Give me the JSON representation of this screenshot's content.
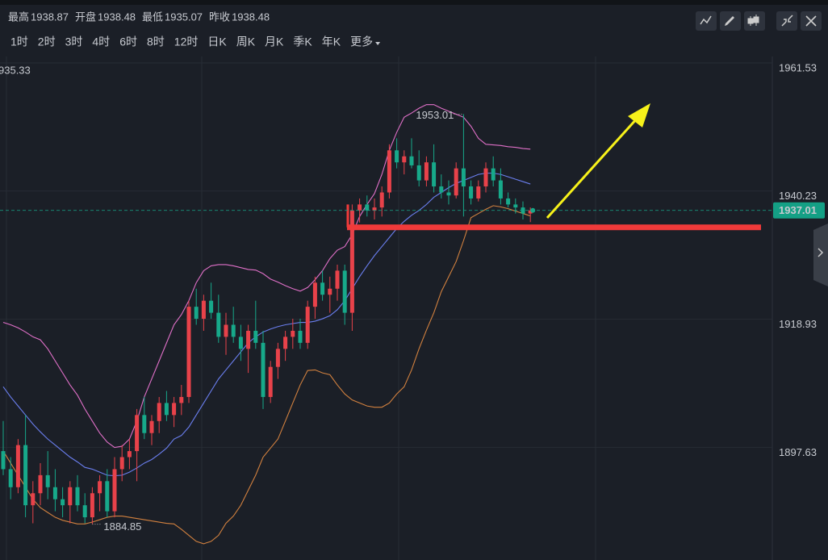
{
  "header": {
    "items": [
      {
        "label": "最高",
        "value": 1938.87
      },
      {
        "label": "开盘",
        "value": 1938.48
      },
      {
        "label": "最低",
        "value": 1935.07
      },
      {
        "label": "昨收",
        "value": 1938.48
      }
    ]
  },
  "toolbar": {
    "periods": [
      "1时",
      "2时",
      "3时",
      "4时",
      "6时",
      "8时",
      "12时",
      "日K",
      "周K",
      "月K",
      "季K",
      "年K",
      "更多"
    ],
    "active": "4时"
  },
  "chart_data": {
    "type": "candlestick",
    "up_color": "#e8424a",
    "down_color": "#17a98a",
    "ylim": [
      1878.9,
      1962.6
    ],
    "yticks": [
      1961.53,
      1940.23,
      1918.93,
      1897.63
    ],
    "grid": true,
    "left_label": "935.33",
    "hline": {
      "value": 1934.2,
      "color": "#f03a3a"
    },
    "candles": [
      [
        1897,
        1902,
        1893,
        1894
      ],
      [
        1894,
        1896,
        1889,
        1891
      ],
      [
        1891,
        1899,
        1890,
        1898
      ],
      [
        1898,
        1903,
        1886,
        1888
      ],
      [
        1888,
        1892,
        1885,
        1890
      ],
      [
        1890,
        1895,
        1888,
        1893
      ],
      [
        1893,
        1897,
        1889,
        1891
      ],
      [
        1891,
        1894,
        1887,
        1889
      ],
      [
        1889,
        1891,
        1886,
        1888
      ],
      [
        1888,
        1892,
        1885,
        1891
      ],
      [
        1891,
        1893,
        1887,
        1888
      ],
      [
        1888,
        1890,
        1885,
        1886
      ],
      [
        1886,
        1891,
        1884.85,
        1890
      ],
      [
        1890,
        1893,
        1887,
        1892
      ],
      [
        1892,
        1894,
        1886,
        1887
      ],
      [
        1887,
        1896,
        1886,
        1894
      ],
      [
        1894,
        1898,
        1892,
        1896
      ],
      [
        1896,
        1899,
        1894,
        1897
      ],
      [
        1897,
        1904,
        1892,
        1903
      ],
      [
        1903,
        1906,
        1899,
        1900
      ],
      [
        1900,
        1903,
        1898,
        1902
      ],
      [
        1902,
        1906,
        1900,
        1905
      ],
      [
        1905,
        1907,
        1902,
        1903
      ],
      [
        1903,
        1906,
        1901,
        1905
      ],
      [
        1905,
        1908,
        1903,
        1906
      ],
      [
        1906,
        1922,
        1905,
        1921
      ],
      [
        1921,
        1924,
        1918,
        1919
      ],
      [
        1919,
        1923,
        1917,
        1922
      ],
      [
        1922,
        1925,
        1919,
        1920
      ],
      [
        1920,
        1923,
        1915,
        1916
      ],
      [
        1916,
        1920,
        1913,
        1918
      ],
      [
        1918,
        1921,
        1915,
        1916
      ],
      [
        1916,
        1918,
        1912,
        1914
      ],
      [
        1914,
        1918,
        1910,
        1917
      ],
      [
        1917,
        1922,
        1914,
        1915
      ],
      [
        1915,
        1917,
        1904,
        1906
      ],
      [
        1906,
        1912,
        1905,
        1911
      ],
      [
        1911,
        1915,
        1909,
        1914
      ],
      [
        1914,
        1917,
        1912,
        1916
      ],
      [
        1916,
        1919,
        1914,
        1917
      ],
      [
        1917,
        1919,
        1914,
        1915
      ],
      [
        1915,
        1922,
        1914,
        1921
      ],
      [
        1921,
        1926,
        1919,
        1925
      ],
      [
        1925,
        1927,
        1922,
        1923
      ],
      [
        1923,
        1926,
        1920,
        1924
      ],
      [
        1924,
        1928,
        1922,
        1927
      ],
      [
        1927,
        1928,
        1918,
        1920
      ],
      [
        1920,
        1938,
        1917,
        1937
      ],
      [
        1937,
        1939,
        1935,
        1938
      ],
      [
        1938,
        1939.5,
        1936,
        1937
      ],
      [
        1937,
        1939,
        1935.5,
        1937.5
      ],
      [
        1937.5,
        1941,
        1936,
        1940
      ],
      [
        1940,
        1948,
        1939,
        1947
      ],
      [
        1947,
        1949,
        1944,
        1945
      ],
      [
        1945,
        1947,
        1943,
        1946
      ],
      [
        1946,
        1949,
        1944,
        1944.5
      ],
      [
        1944.5,
        1947,
        1941,
        1942
      ],
      [
        1942,
        1946,
        1941,
        1945
      ],
      [
        1945,
        1948,
        1940,
        1941
      ],
      [
        1941,
        1943,
        1939,
        1940
      ],
      [
        1940,
        1942,
        1938,
        1939.5
      ],
      [
        1939.5,
        1945,
        1939,
        1944
      ],
      [
        1944,
        1953.01,
        1936,
        1941
      ],
      [
        1941,
        1942,
        1938,
        1939
      ],
      [
        1939,
        1942,
        1938.5,
        1941
      ],
      [
        1941,
        1945,
        1940,
        1944
      ],
      [
        1944,
        1946,
        1941,
        1942
      ],
      [
        1942,
        1944,
        1938,
        1939
      ],
      [
        1939,
        1940,
        1937.5,
        1938
      ],
      [
        1938,
        1939,
        1936.5,
        1937.5
      ],
      [
        1937.5,
        1938.5,
        1935.5,
        1936.5
      ],
      [
        1936.5,
        1937.5,
        1935.07,
        1937.01
      ]
    ],
    "lines": [
      {
        "color": "#e070c8",
        "values": [
          1918.4,
          1918,
          1917.5,
          1916.8,
          1916,
          1915.5,
          1914,
          1912,
          1910,
          1908,
          1906.3,
          1904,
          1902,
          1900,
          1898.5,
          1897.6,
          1897.8,
          1899,
          1902,
          1906,
          1909,
          1912,
          1915,
          1918,
          1919.7,
          1922,
          1925,
          1927,
          1927.8,
          1928,
          1928,
          1927.8,
          1927.5,
          1927.2,
          1927.1,
          1926.5,
          1925.6,
          1925.1,
          1924.5,
          1924,
          1923.6,
          1924.2,
          1925.5,
          1927,
          1929,
          1930.4,
          1931,
          1933,
          1936,
          1938,
          1939.8,
          1943,
          1947,
          1950,
          1952.5,
          1953.2,
          1954,
          1954.6,
          1954.6,
          1954,
          1953.5,
          1953,
          1952.5,
          1951,
          1949,
          1948,
          1947.9,
          1947.8,
          1947.6,
          1947.5,
          1947.3,
          1947.2
        ]
      },
      {
        "color": "#6b7ff0",
        "values": [
          1907.7,
          1906,
          1904.5,
          1903,
          1901.5,
          1900.2,
          1899,
          1898,
          1897,
          1896,
          1895.2,
          1894.3,
          1894,
          1893.5,
          1893,
          1892.9,
          1893,
          1893.5,
          1894.2,
          1895,
          1895.6,
          1896.5,
          1897.5,
          1899,
          1899.6,
          1901,
          1903,
          1905,
          1907,
          1909,
          1910.5,
          1912,
          1913.5,
          1915,
          1916,
          1916.8,
          1917.3,
          1917.7,
          1918,
          1918.2,
          1918.4,
          1918.4,
          1918.6,
          1919,
          1919.5,
          1920.5,
          1922,
          1924,
          1926,
          1927.8,
          1929.5,
          1931,
          1932.5,
          1934,
          1935.2,
          1936.2,
          1937,
          1938,
          1939.2,
          1940,
          1940.8,
          1941.5,
          1942,
          1942.5,
          1943,
          1943.2,
          1943.2,
          1943,
          1942.6,
          1942.2,
          1941.8,
          1941.4
        ]
      },
      {
        "color": "#d2813f",
        "values": [
          1897,
          1895,
          1893,
          1891,
          1889,
          1887.6,
          1886.8,
          1886,
          1885.5,
          1885.2,
          1884.9,
          1884.9,
          1885.2,
          1885.6,
          1886,
          1886.2,
          1886.2,
          1886,
          1885.8,
          1885.6,
          1885.4,
          1885.2,
          1885,
          1884.9,
          1884,
          1883,
          1882,
          1881.6,
          1882,
          1883,
          1885,
          1886.2,
          1888,
          1890.5,
          1893,
          1896,
          1897.5,
          1899,
          1902,
          1905,
          1908,
          1910.4,
          1910.5,
          1910,
          1909.7,
          1908,
          1906.5,
          1905.5,
          1905,
          1904.5,
          1904.3,
          1904.3,
          1905,
          1906.5,
          1907.7,
          1910.5,
          1914,
          1917.1,
          1920,
          1923.5,
          1926,
          1928.5,
          1932,
          1935.8,
          1936.5,
          1937.2,
          1937.8,
          1937.6,
          1937.3,
          1936.9,
          1936.5,
          1936.1
        ]
      }
    ]
  }
}
